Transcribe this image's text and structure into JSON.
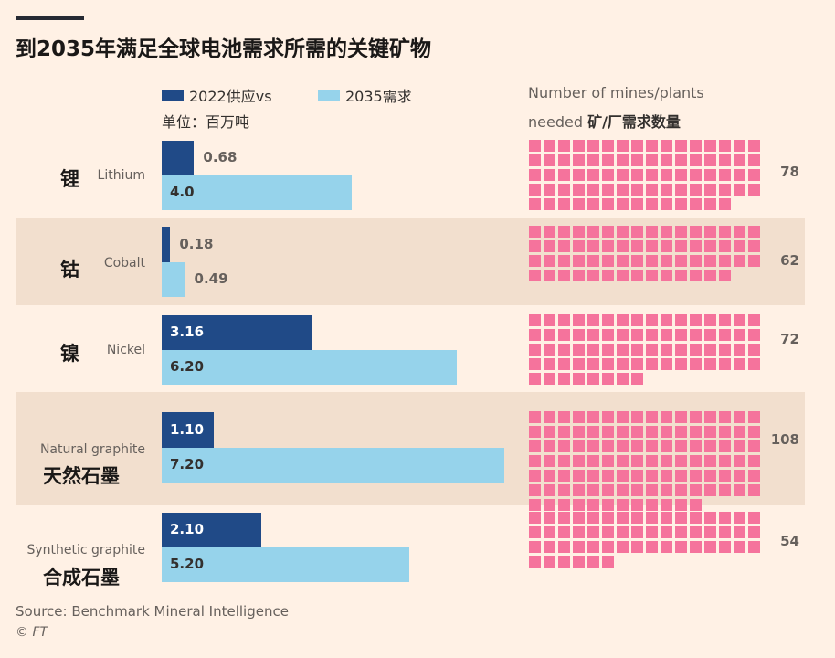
{
  "colors": {
    "background": "#fff1e5",
    "band": "#f2dfce",
    "supply": "#204a87",
    "demand": "#96d3eb",
    "mines": "#f5739c"
  },
  "chart_data": {
    "type": "bar",
    "title": "到2035年满足全球电池需求所需的关键矿物",
    "unit_label": "单位：百万吨",
    "legend": {
      "supply": "2022供应vs",
      "demand": "2035需求"
    },
    "mines_header": {
      "en_line1": "Number of mines/plants",
      "en_line2": "needed",
      "zh": "矿/厂需求数量"
    },
    "categories": [
      {
        "zh": "锂",
        "en": "Lithium",
        "supply_2022": 0.68,
        "demand_2035": 4.0,
        "supply_label": "0.68",
        "demand_label": "4.0",
        "mines": 78
      },
      {
        "zh": "钴",
        "en": "Cobalt",
        "supply_2022": 0.18,
        "demand_2035": 0.49,
        "supply_label": "0.18",
        "demand_label": "0.49",
        "mines": 62
      },
      {
        "zh": "镍",
        "en": "Nickel",
        "supply_2022": 3.16,
        "demand_2035": 6.2,
        "supply_label": "3.16",
        "demand_label": "6.20",
        "mines": 72
      },
      {
        "zh": "天然石墨",
        "en": "Natural graphite",
        "supply_2022": 1.1,
        "demand_2035": 7.2,
        "supply_label": "1.10",
        "demand_label": "7.20",
        "mines": 108
      },
      {
        "zh": "合成石墨",
        "en": "Synthetic graphite",
        "supply_2022": 2.1,
        "demand_2035": 5.2,
        "supply_label": "2.10",
        "demand_label": "5.20",
        "mines": 54
      }
    ],
    "series": [
      {
        "name": "2022供应vs",
        "values": [
          0.68,
          0.18,
          3.16,
          1.1,
          2.1
        ]
      },
      {
        "name": "2035需求",
        "values": [
          4.0,
          0.49,
          6.2,
          7.2,
          5.2
        ]
      }
    ],
    "xlim": [
      0,
      7.2
    ]
  },
  "footer": {
    "source": "Source: Benchmark Mineral Intelligence",
    "credit": "© FT"
  }
}
